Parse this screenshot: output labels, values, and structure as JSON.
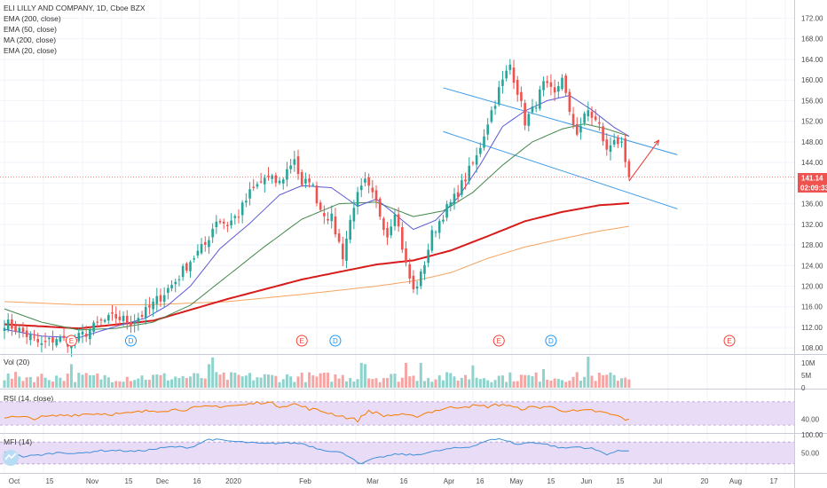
{
  "colors": {
    "up": "#26a69a",
    "down": "#ef5350",
    "ema200": "#d81b1b",
    "ema50": "#43884a",
    "ma200": "#f4a460",
    "ema20": "#5b57d6",
    "channel": "#3d9be9",
    "arrow": "#e53935",
    "rsi": "#f57c00",
    "mfi": "#3f8fd8",
    "band": "#e9dcf7",
    "priceTag": "#ef5350",
    "timeTag": "#ef5350",
    "divBadge": "#2196f3",
    "earnBadge": "#f44336"
  },
  "legend": {
    "title": "ELI LILLY AND COMPANY, 1D, Cboe BZX",
    "indicators": [
      "EMA (200, close)",
      "EMA (50, close)",
      "MA (200, close)",
      "EMA (20, close)"
    ]
  },
  "price_tag": "141.14",
  "time_tag": "02:09:33",
  "panes": {
    "vol_title": "Vol (20)",
    "rsi_title": "RSI (14, close)",
    "mfi_title": "MFI (14)"
  },
  "chart_data": {
    "type": "candlestick",
    "price_axis": {
      "ylim": [
        107.0,
        174.5
      ],
      "ticks": [
        "172.00",
        "168.00",
        "164.00",
        "160.00",
        "156.00",
        "152.00",
        "148.00",
        "144.00",
        "140.00",
        "136.00",
        "132.00",
        "128.00",
        "124.00",
        "120.00",
        "116.00",
        "112.00",
        "108.00"
      ],
      "tick_values": [
        172,
        168,
        164,
        160,
        156,
        152,
        148,
        144,
        140,
        136,
        132,
        128,
        124,
        120,
        116,
        112,
        108
      ],
      "last_price": 141.14
    },
    "time_axis": {
      "labels": [
        "Oct",
        "15",
        "Nov",
        "15",
        "Dec",
        "16",
        "2020",
        "Feb",
        "Mar",
        "16",
        "Apr",
        "16",
        "May",
        "15",
        "Jun",
        "15",
        "Jul",
        "20",
        "Aug",
        "17"
      ]
    },
    "close_anchors": [
      [
        0,
        113
      ],
      [
        5,
        111
      ],
      [
        10,
        108.5
      ],
      [
        14,
        110
      ],
      [
        18,
        109
      ],
      [
        22,
        111
      ],
      [
        26,
        113
      ],
      [
        30,
        114
      ],
      [
        34,
        113
      ],
      [
        38,
        115
      ],
      [
        42,
        118
      ],
      [
        46,
        121
      ],
      [
        50,
        125
      ],
      [
        54,
        128
      ],
      [
        57,
        133
      ],
      [
        60,
        132
      ],
      [
        63,
        134
      ],
      [
        66,
        138
      ],
      [
        70,
        141
      ],
      [
        74,
        140
      ],
      [
        78,
        145
      ],
      [
        80,
        139
      ],
      [
        82,
        141
      ],
      [
        85,
        135
      ],
      [
        88,
        133
      ],
      [
        91,
        126
      ],
      [
        94,
        136
      ],
      [
        97,
        140
      ],
      [
        100,
        136
      ],
      [
        103,
        130
      ],
      [
        105,
        135
      ],
      [
        108,
        124
      ],
      [
        110,
        119
      ],
      [
        112,
        122
      ],
      [
        115,
        130
      ],
      [
        118,
        134
      ],
      [
        121,
        137
      ],
      [
        124,
        141
      ],
      [
        127,
        145
      ],
      [
        130,
        152
      ],
      [
        133,
        158
      ],
      [
        136,
        163
      ],
      [
        138,
        158
      ],
      [
        140,
        152
      ],
      [
        142,
        154
      ],
      [
        145,
        159
      ],
      [
        148,
        157
      ],
      [
        150,
        161
      ],
      [
        152,
        153
      ],
      [
        154,
        150
      ],
      [
        157,
        154
      ],
      [
        160,
        151
      ],
      [
        162,
        146
      ],
      [
        164,
        149
      ],
      [
        166,
        147
      ],
      [
        167,
        143
      ],
      [
        168,
        141.14
      ]
    ],
    "ema20_anchors": [
      [
        0,
        111.6
      ],
      [
        10,
        110.3
      ],
      [
        20,
        110.0
      ],
      [
        30,
        112.2
      ],
      [
        38,
        113.8
      ],
      [
        44,
        116.3
      ],
      [
        50,
        120.0
      ],
      [
        58,
        127.3
      ],
      [
        66,
        132.2
      ],
      [
        74,
        137.7
      ],
      [
        80,
        139.5
      ],
      [
        88,
        139.1
      ],
      [
        95,
        135.5
      ],
      [
        100,
        136.9
      ],
      [
        105,
        134.0
      ],
      [
        110,
        131.0
      ],
      [
        116,
        132.8
      ],
      [
        122,
        137.2
      ],
      [
        128,
        143.6
      ],
      [
        134,
        151.0
      ],
      [
        140,
        154.0
      ],
      [
        146,
        156.0
      ],
      [
        152,
        157.0
      ],
      [
        158,
        154.2
      ],
      [
        164,
        150.8
      ],
      [
        168,
        149.1
      ]
    ],
    "ema50_anchors": [
      [
        0,
        115.6
      ],
      [
        10,
        113.0
      ],
      [
        20,
        111.5
      ],
      [
        30,
        111.8
      ],
      [
        40,
        113.0
      ],
      [
        50,
        116.3
      ],
      [
        60,
        122.0
      ],
      [
        70,
        127.7
      ],
      [
        80,
        133.0
      ],
      [
        90,
        136.0
      ],
      [
        100,
        136.3
      ],
      [
        110,
        133.5
      ],
      [
        118,
        134.6
      ],
      [
        126,
        138.2
      ],
      [
        134,
        143.5
      ],
      [
        142,
        148.0
      ],
      [
        150,
        150.5
      ],
      [
        156,
        151.5
      ],
      [
        162,
        150.5
      ],
      [
        168,
        149.1
      ]
    ],
    "ema200_anchors": [
      [
        0,
        112.6
      ],
      [
        20,
        111.8
      ],
      [
        40,
        113.3
      ],
      [
        60,
        117.5
      ],
      [
        80,
        121.3
      ],
      [
        100,
        124.2
      ],
      [
        110,
        125.0
      ],
      [
        120,
        126.9
      ],
      [
        130,
        129.7
      ],
      [
        140,
        132.6
      ],
      [
        150,
        134.4
      ],
      [
        160,
        135.7
      ],
      [
        168,
        136.1
      ]
    ],
    "ma200_anchors": [
      [
        0,
        117.0
      ],
      [
        20,
        116.4
      ],
      [
        40,
        116.4
      ],
      [
        60,
        117.0
      ],
      [
        80,
        118.4
      ],
      [
        100,
        120.0
      ],
      [
        110,
        121.0
      ],
      [
        120,
        122.6
      ],
      [
        130,
        125.4
      ],
      [
        140,
        127.6
      ],
      [
        150,
        129.2
      ],
      [
        160,
        130.7
      ],
      [
        168,
        131.6
      ]
    ],
    "channel_upper": [
      [
        118,
        158.5
      ],
      [
        181,
        145.5
      ]
    ],
    "channel_lower": [
      [
        118,
        150.0
      ],
      [
        181,
        135.0
      ]
    ],
    "projection_arrow": [
      [
        168,
        140.4
      ],
      [
        176,
        148.3
      ]
    ],
    "events": [
      {
        "type": "earnings",
        "label": "E",
        "day": 18
      },
      {
        "type": "dividend",
        "label": "D",
        "day": 34
      },
      {
        "type": "earnings",
        "label": "E",
        "day": 80
      },
      {
        "type": "dividend",
        "label": "D",
        "day": 89
      },
      {
        "type": "earnings",
        "label": "E",
        "day": 133
      },
      {
        "type": "dividend",
        "label": "D",
        "day": 147
      },
      {
        "type": "earnings",
        "label": "E",
        "day": 195
      }
    ],
    "volume_axis": {
      "ticks": [
        "10M",
        "5M",
        "0"
      ],
      "tick_values": [
        10,
        5,
        0
      ],
      "ylim": [
        0,
        12.5
      ]
    },
    "volume_spikes": [
      [
        18,
        9.5
      ],
      [
        55,
        9.5
      ],
      [
        56,
        12.2
      ],
      [
        96,
        10
      ],
      [
        97,
        9.5
      ],
      [
        108,
        10
      ],
      [
        112,
        10
      ],
      [
        126,
        9
      ],
      [
        157,
        12.5
      ],
      [
        145,
        7.5
      ]
    ],
    "rsi_axis": {
      "ticks": [
        "40.00"
      ],
      "tick_values": [
        40
      ],
      "ylim": [
        18,
        88
      ],
      "band": [
        30,
        70
      ]
    },
    "rsi_anchors": [
      [
        0,
        44
      ],
      [
        8,
        42
      ],
      [
        16,
        47
      ],
      [
        24,
        50
      ],
      [
        32,
        49
      ],
      [
        40,
        55
      ],
      [
        48,
        57
      ],
      [
        56,
        62
      ],
      [
        64,
        64
      ],
      [
        70,
        70
      ],
      [
        74,
        63
      ],
      [
        78,
        66
      ],
      [
        82,
        58
      ],
      [
        86,
        53
      ],
      [
        91,
        45
      ],
      [
        95,
        38
      ],
      [
        98,
        55
      ],
      [
        102,
        46
      ],
      [
        106,
        48
      ],
      [
        110,
        44
      ],
      [
        114,
        52
      ],
      [
        118,
        58
      ],
      [
        124,
        63
      ],
      [
        130,
        62
      ],
      [
        134,
        66
      ],
      [
        138,
        58
      ],
      [
        142,
        60
      ],
      [
        146,
        62
      ],
      [
        150,
        56
      ],
      [
        154,
        53
      ],
      [
        158,
        55
      ],
      [
        162,
        50
      ],
      [
        165,
        45
      ],
      [
        168,
        38
      ]
    ],
    "mfi_axis": {
      "ticks": [
        "100.00",
        "50.00"
      ],
      "tick_values": [
        100,
        50
      ],
      "ylim": [
        0,
        100
      ],
      "band": [
        20,
        80
      ]
    },
    "mfi_anchors": [
      [
        0,
        52
      ],
      [
        5,
        40
      ],
      [
        10,
        45
      ],
      [
        15,
        52
      ],
      [
        20,
        48
      ],
      [
        25,
        56
      ],
      [
        30,
        57
      ],
      [
        35,
        54
      ],
      [
        40,
        60
      ],
      [
        45,
        67
      ],
      [
        50,
        65
      ],
      [
        55,
        88
      ],
      [
        60,
        83
      ],
      [
        65,
        79
      ],
      [
        70,
        75
      ],
      [
        75,
        78
      ],
      [
        80,
        76
      ],
      [
        85,
        60
      ],
      [
        90,
        52
      ],
      [
        93,
        40
      ],
      [
        96,
        18
      ],
      [
        98,
        30
      ],
      [
        102,
        40
      ],
      [
        106,
        47
      ],
      [
        110,
        44
      ],
      [
        115,
        53
      ],
      [
        120,
        62
      ],
      [
        125,
        66
      ],
      [
        130,
        85
      ],
      [
        134,
        88
      ],
      [
        138,
        73
      ],
      [
        142,
        80
      ],
      [
        146,
        73
      ],
      [
        150,
        63
      ],
      [
        154,
        67
      ],
      [
        158,
        62
      ],
      [
        162,
        47
      ],
      [
        165,
        55
      ],
      [
        168,
        57
      ]
    ]
  }
}
